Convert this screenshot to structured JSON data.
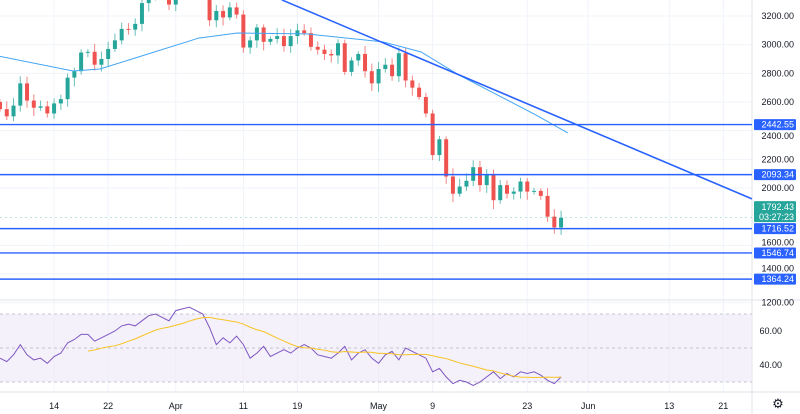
{
  "chart_data": {
    "type": "candlestick",
    "instrument_hint": "",
    "start_date": "Mar 6",
    "closes": [
      2550,
      2500,
      2575,
      2730,
      2610,
      2560,
      2570,
      2520,
      2590,
      2620,
      2770,
      2815,
      2945,
      2950,
      2860,
      2900,
      2970,
      3030,
      3110,
      3105,
      3145,
      3290,
      3330,
      3400,
      3385,
      3280,
      3450,
      3445,
      3520,
      3520,
      3410,
      3170,
      3235,
      3190,
      3260,
      3210,
      2980,
      3030,
      3120,
      3020,
      3040,
      3060,
      2990,
      3060,
      3100,
      3080,
      2985,
      2965,
      2935,
      2925,
      3010,
      2810,
      2890,
      2935,
      2815,
      2730,
      2830,
      2860,
      2780,
      2940,
      2750,
      2700,
      2635,
      2520,
      2230,
      2340,
      2080,
      1960,
      2010,
      2050,
      2145,
      2020,
      2090,
      1915,
      2020,
      1960,
      1975,
      2045,
      1975,
      1980,
      1945,
      1800,
      1725,
      1792.43
    ],
    "first_open": 2600,
    "moving_average": [
      [
        -0.3,
        2921
      ],
      [
        10.8,
        2816
      ],
      [
        14.8,
        2830
      ],
      [
        29.4,
        3046
      ],
      [
        35.1,
        3081
      ],
      [
        45.3,
        3075
      ],
      [
        56.7,
        3019
      ],
      [
        62.3,
        2949
      ],
      [
        67.9,
        2788
      ],
      [
        79.3,
        2509
      ],
      [
        84.0,
        2384
      ]
    ],
    "trendline": {
      "from": [
        41.7,
        3312
      ],
      "to": [
        112,
        1909
      ]
    },
    "horizontal_levels": [
      2442.55,
      2093.34,
      1716.52,
      1546.74,
      1364.24
    ],
    "current_price": {
      "value": "1792.43",
      "countdown": "03:27:23"
    },
    "price_axis": {
      "range": [
        1150,
        3300
      ],
      "ticks": [
        "3200.00",
        "3000.00",
        "2800.00",
        "2600.00",
        "2400.00",
        "2200.00",
        "2000.00",
        "1600.00",
        "1400.00",
        "1200.00"
      ],
      "tick_values": [
        3200,
        3000,
        2800,
        2600,
        2400,
        2200,
        2000,
        1600,
        1400,
        1200
      ]
    },
    "time_axis": {
      "ticks": [
        {
          "label": "14",
          "i": 8
        },
        {
          "label": "22",
          "i": 16
        },
        {
          "label": "Apr",
          "i": 26
        },
        {
          "label": "11",
          "i": 36
        },
        {
          "label": "19",
          "i": 44
        },
        {
          "label": "May",
          "i": 56
        },
        {
          "label": "9",
          "i": 64
        },
        {
          "label": "23",
          "i": 78
        },
        {
          "label": "Jun",
          "i": 87
        },
        {
          "label": "13",
          "i": 99
        },
        {
          "label": "21",
          "i": 107
        }
      ]
    },
    "rsi": {
      "values": [
        44,
        42,
        46,
        52,
        46,
        43,
        44,
        41,
        45,
        47,
        53,
        55,
        58,
        58,
        54,
        56,
        58,
        60,
        63,
        64,
        63,
        66,
        69,
        70,
        68,
        66,
        72,
        73,
        74,
        72,
        70,
        62,
        52,
        56,
        53,
        57,
        52,
        44,
        47,
        51,
        45,
        47,
        49,
        47,
        50,
        52,
        50,
        46,
        45,
        44,
        47,
        51,
        43,
        47,
        49,
        44,
        41,
        46,
        48,
        43,
        50,
        48,
        46,
        44,
        36,
        38,
        33,
        29,
        31,
        30,
        28,
        30,
        33,
        36,
        32,
        35,
        33,
        36,
        35,
        36,
        34,
        31,
        29,
        33
      ],
      "ma_period": 14,
      "band": [
        30,
        70
      ],
      "ticks": [
        "60.00",
        "40.00"
      ],
      "tick_values": [
        60,
        40
      ]
    },
    "colors": {
      "up": "#26a69a",
      "down": "#ef5350",
      "level": "#2962ff",
      "ma": "#42a5f5",
      "rsi": "#7e57c2",
      "rsi_ma": "#f7c325",
      "band_fill": "#ede7f6"
    }
  },
  "settings_icon": "gear-icon"
}
